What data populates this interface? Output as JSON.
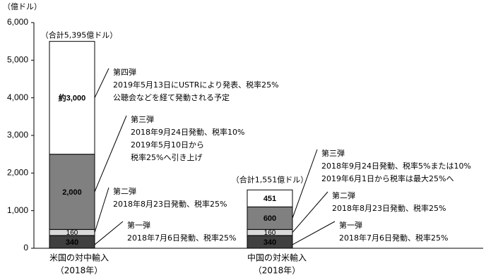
{
  "chart_data": {
    "type": "stacked-bar",
    "y_unit_label": "（億ドル）",
    "categories": [
      [
        "米国の対中輸入",
        "（2018年）"
      ],
      [
        "中国の対米輸入",
        "（2018年）"
      ]
    ],
    "totals": [
      {
        "value": 5395,
        "label": "（合計5,395億ドル）"
      },
      {
        "value": 1551,
        "label": "（合計1,551億ドル）"
      }
    ],
    "ylim": [
      0,
      6000
    ],
    "yticks": [
      0,
      {
        "value": 1000,
        "label": "1,000"
      },
      {
        "value": 2000,
        "label": "2,000"
      },
      {
        "value": 3000,
        "label": "3,000"
      },
      {
        "value": 4000,
        "label": "4,000"
      },
      {
        "value": 5000,
        "label": "5,000"
      },
      {
        "value": 6000,
        "label": "6,000"
      }
    ],
    "series": [
      {
        "name": "第一弾",
        "color": "#404040",
        "values": [
          340,
          340
        ],
        "notes": [
          [
            "2018年7月6日発動、税率25%"
          ],
          [
            "2018年7月6日発動、税率25%"
          ]
        ]
      },
      {
        "name": "第二弾",
        "color": "#d9d9d9",
        "values": [
          160,
          160
        ],
        "notes": [
          [
            "2018年8月23日発動、税率25%"
          ],
          [
            "2018年8月23日発動、税率25%"
          ]
        ]
      },
      {
        "name": "第三弾",
        "color": "#808080",
        "values": [
          2000,
          600
        ],
        "value_labels": [
          "2,000",
          "600"
        ],
        "notes": [
          [
            "2018年9月24日発動、税率10%",
            "2019年5月10日から",
            "税率25%へ引き上げ"
          ],
          [
            "2018年9月24日発動、税率5%または10%",
            "2019年6月1日から税率は最大25%へ"
          ]
        ]
      },
      {
        "name": "第四弾",
        "color": "#ffffff",
        "values": [
          3000,
          null
        ],
        "value_labels": [
          "約3,000",
          null
        ],
        "notes": [
          [
            "2019年5月13日にUSTRにより発表、税率25%",
            "公聴会などを経て発動される予定"
          ],
          null
        ]
      },
      {
        "color": "#ffffff",
        "values": [
          null,
          451
        ]
      }
    ]
  }
}
